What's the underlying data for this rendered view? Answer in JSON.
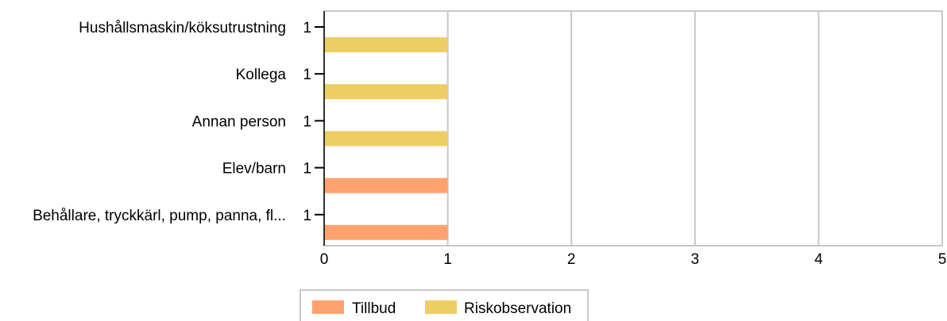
{
  "chart_data": {
    "type": "bar",
    "orientation": "horizontal",
    "stacked": true,
    "categories": [
      "Hushållsmaskin/köksutrustning",
      "Kollega",
      "Annan person",
      "Elev/barn",
      "Behållare, tryckkärl, pump, panna, fl..."
    ],
    "series": [
      {
        "name": "Tillbud",
        "color": "#ffa26d",
        "values": [
          0,
          0,
          0,
          1,
          1
        ]
      },
      {
        "name": "Riskobservation",
        "color": "#efcd65",
        "values": [
          1,
          1,
          1,
          0,
          0
        ]
      }
    ],
    "totals": [
      "1",
      "1",
      "1",
      "1",
      "1"
    ],
    "x_ticks": [
      "0",
      "1",
      "2",
      "3",
      "4",
      "5"
    ],
    "xlim": [
      0,
      5
    ],
    "grid": true,
    "legend_position": "bottom"
  }
}
